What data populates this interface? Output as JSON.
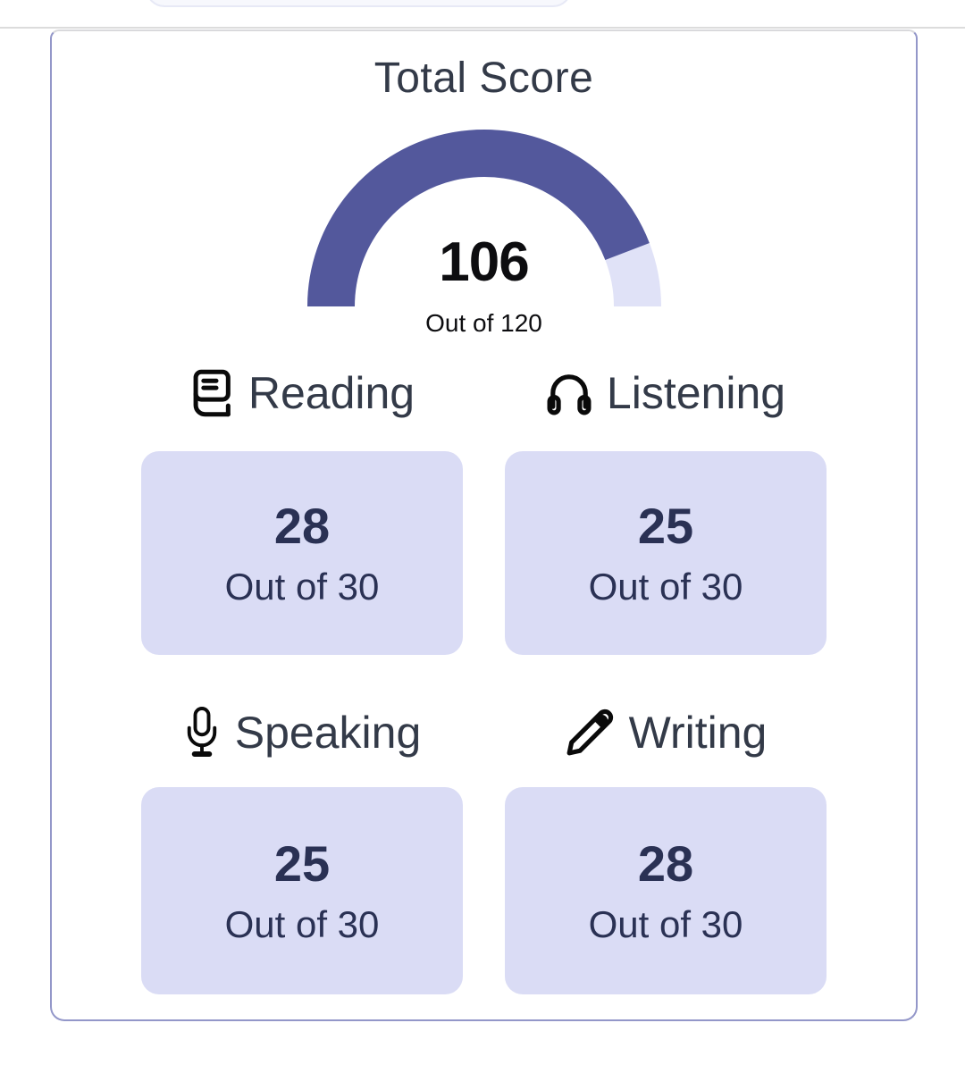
{
  "panel": {
    "title": "Total Score"
  },
  "gauge": {
    "value": 106,
    "max": 120,
    "score_label": "106",
    "out_of_label": "Out of 120"
  },
  "sections": [
    {
      "id": "reading",
      "label": "Reading",
      "icon": "book-icon",
      "score": "28",
      "out_of": "Out of 30",
      "value": 28,
      "max": 30
    },
    {
      "id": "listening",
      "label": "Listening",
      "icon": "headphones-icon",
      "score": "25",
      "out_of": "Out of 30",
      "value": 25,
      "max": 30
    },
    {
      "id": "speaking",
      "label": "Speaking",
      "icon": "microphone-icon",
      "score": "25",
      "out_of": "Out of 30",
      "value": 25,
      "max": 30
    },
    {
      "id": "writing",
      "label": "Writing",
      "icon": "pencil-icon",
      "score": "28",
      "out_of": "Out of 30",
      "value": 28,
      "max": 30
    }
  ],
  "colors": {
    "gauge_fill": "#53589c",
    "gauge_track": "#e0e2f7",
    "tile_background": "#dadcf5",
    "panel_border": "#9397c9",
    "tile_text": "#2a3154",
    "heading_text": "#333a48",
    "score_text": "#0d0d10",
    "divider": "#dcdcdc",
    "icon": "#0a0a0a"
  }
}
